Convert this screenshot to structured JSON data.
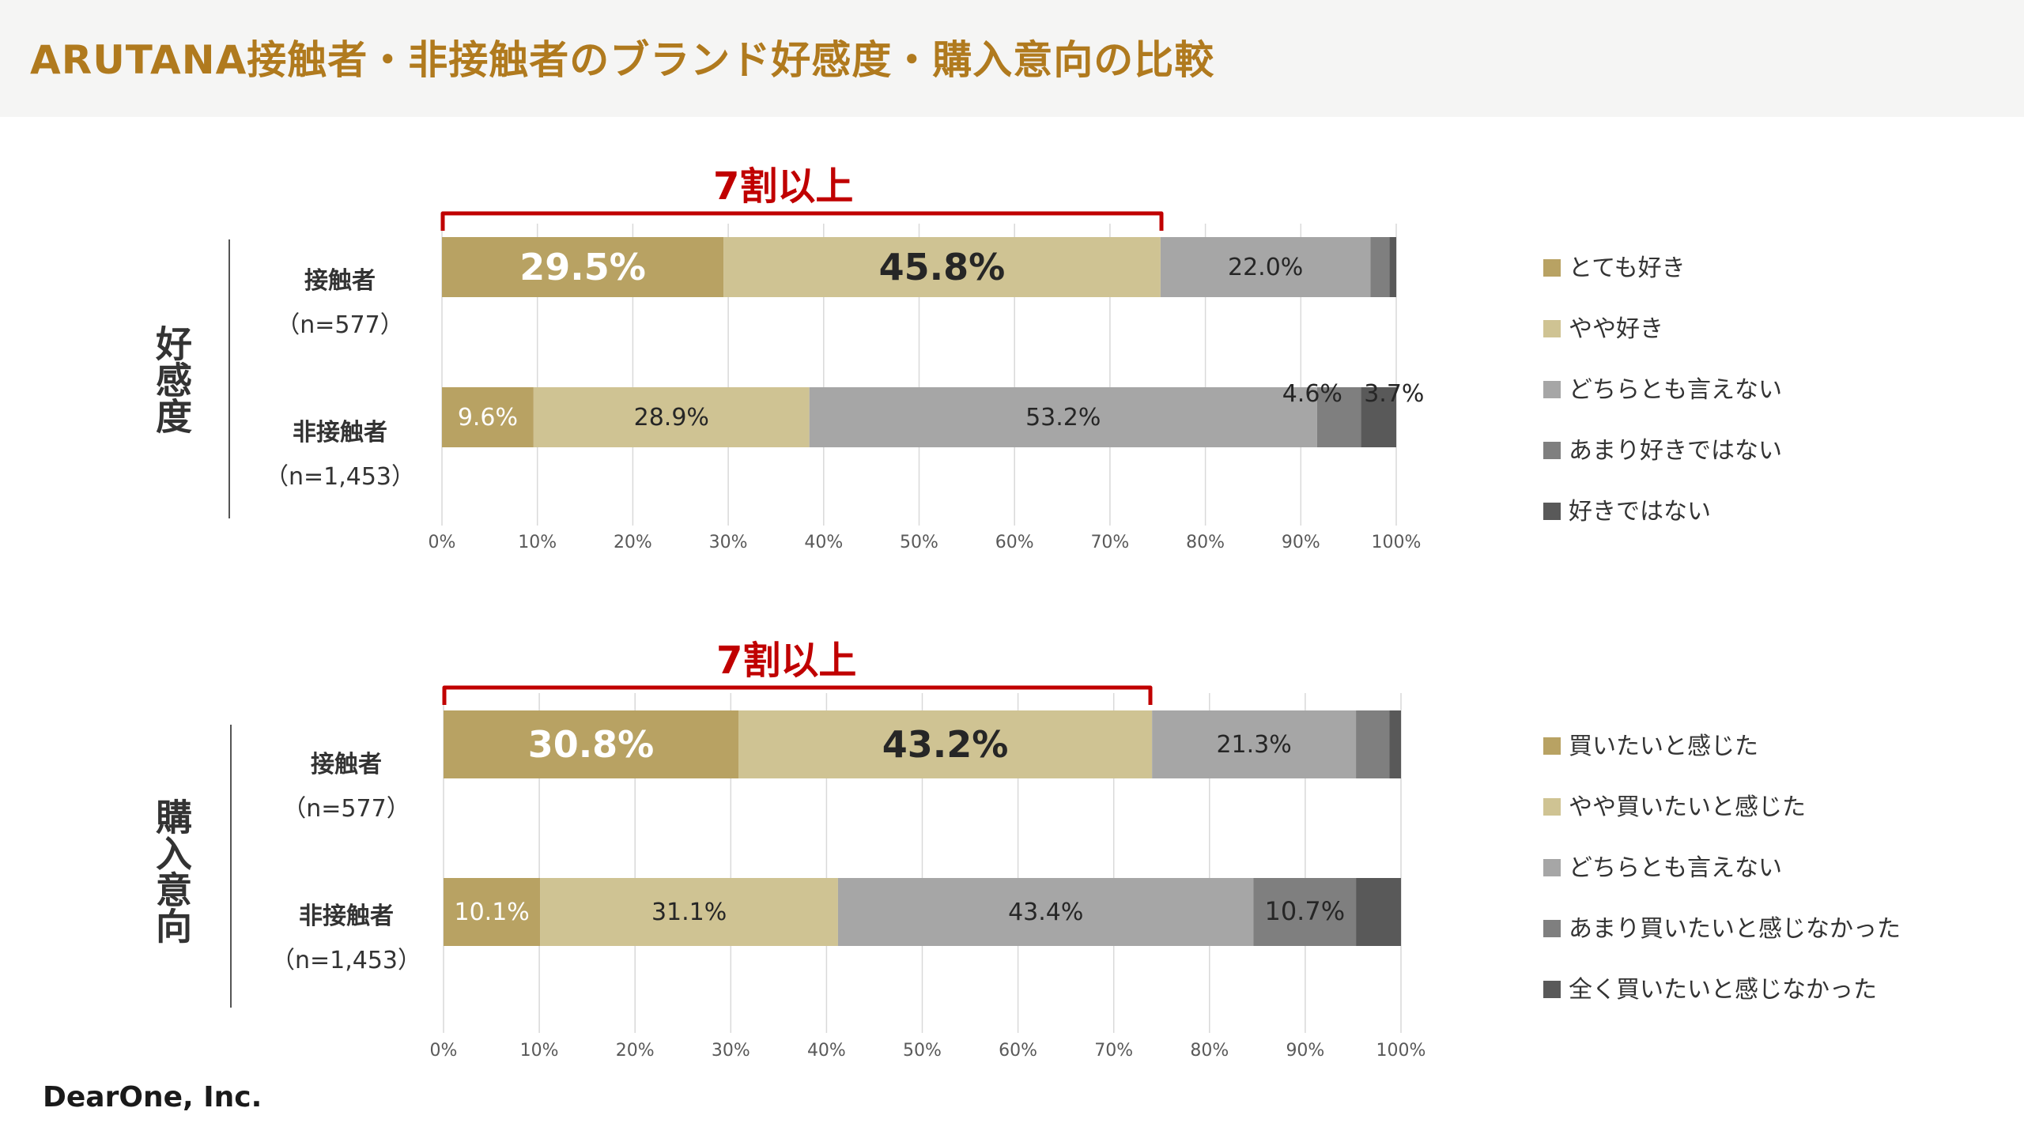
{
  "header": {
    "title": "ARUTANA接触者・非接触者のブランド好感度・購入意向の比較"
  },
  "footer": {
    "logo": "DearOne, Inc."
  },
  "chart_data": [
    {
      "type": "bar",
      "orientation": "horizontal",
      "stacked": true,
      "section_label": "好感度",
      "callout": "7割以上",
      "categories": [
        "接触者 (n=577)",
        "非接触者 (n=1,453)"
      ],
      "row_labels": [
        {
          "name": "接触者",
          "n": "（n=577）"
        },
        {
          "name": "非接触者",
          "n": "（n=1,453）"
        }
      ],
      "series": [
        {
          "name": "とても好き",
          "color": "#b8a263",
          "values": [
            29.5,
            9.6
          ],
          "labels": [
            "29.5%",
            "9.6%"
          ]
        },
        {
          "name": "やや好き",
          "color": "#cfc393",
          "values": [
            45.8,
            28.9
          ],
          "labels": [
            "45.8%",
            "28.9%"
          ]
        },
        {
          "name": "どちらとも言えない",
          "color": "#a6a6a6",
          "values": [
            22.0,
            53.2
          ],
          "labels": [
            "22.0%",
            "53.2%"
          ]
        },
        {
          "name": "あまり好きではない",
          "color": "#7f7f7f",
          "values": [
            2.0,
            4.6
          ],
          "labels": [
            "",
            "4.6%"
          ]
        },
        {
          "name": "好きではない",
          "color": "#595959",
          "values": [
            0.7,
            3.7
          ],
          "labels": [
            "",
            "3.7%"
          ]
        }
      ],
      "xlim": [
        0,
        100
      ],
      "xticks": [
        "0%",
        "10%",
        "20%",
        "30%",
        "40%",
        "50%",
        "60%",
        "70%",
        "80%",
        "90%",
        "100%"
      ],
      "grid": true
    },
    {
      "type": "bar",
      "orientation": "horizontal",
      "stacked": true,
      "section_label": "購入意向",
      "callout": "7割以上",
      "categories": [
        "接触者 (n=577)",
        "非接触者 (n=1,453)"
      ],
      "row_labels": [
        {
          "name": "接触者",
          "n": "（n=577）"
        },
        {
          "name": "非接触者",
          "n": "（n=1,453）"
        }
      ],
      "series": [
        {
          "name": "買いたいと感じた",
          "color": "#b8a263",
          "values": [
            30.8,
            10.1
          ],
          "labels": [
            "30.8%",
            "10.1%"
          ]
        },
        {
          "name": "やや買いたいと感じた",
          "color": "#cfc393",
          "values": [
            43.2,
            31.1
          ],
          "labels": [
            "43.2%",
            "31.1%"
          ]
        },
        {
          "name": "どちらとも言えない",
          "color": "#a6a6a6",
          "values": [
            21.3,
            43.4
          ],
          "labels": [
            "21.3%",
            "43.4%"
          ]
        },
        {
          "name": "あまり買いたいと感じなかった",
          "color": "#7f7f7f",
          "values": [
            3.5,
            10.7
          ],
          "labels": [
            "",
            "10.7%"
          ]
        },
        {
          "name": "全く買いたいと感じなかった",
          "color": "#595959",
          "values": [
            1.2,
            4.7
          ],
          "labels": [
            "",
            ""
          ]
        }
      ],
      "xlim": [
        0,
        100
      ],
      "xticks": [
        "0%",
        "10%",
        "20%",
        "30%",
        "40%",
        "50%",
        "60%",
        "70%",
        "80%",
        "90%",
        "100%"
      ],
      "grid": true
    }
  ]
}
